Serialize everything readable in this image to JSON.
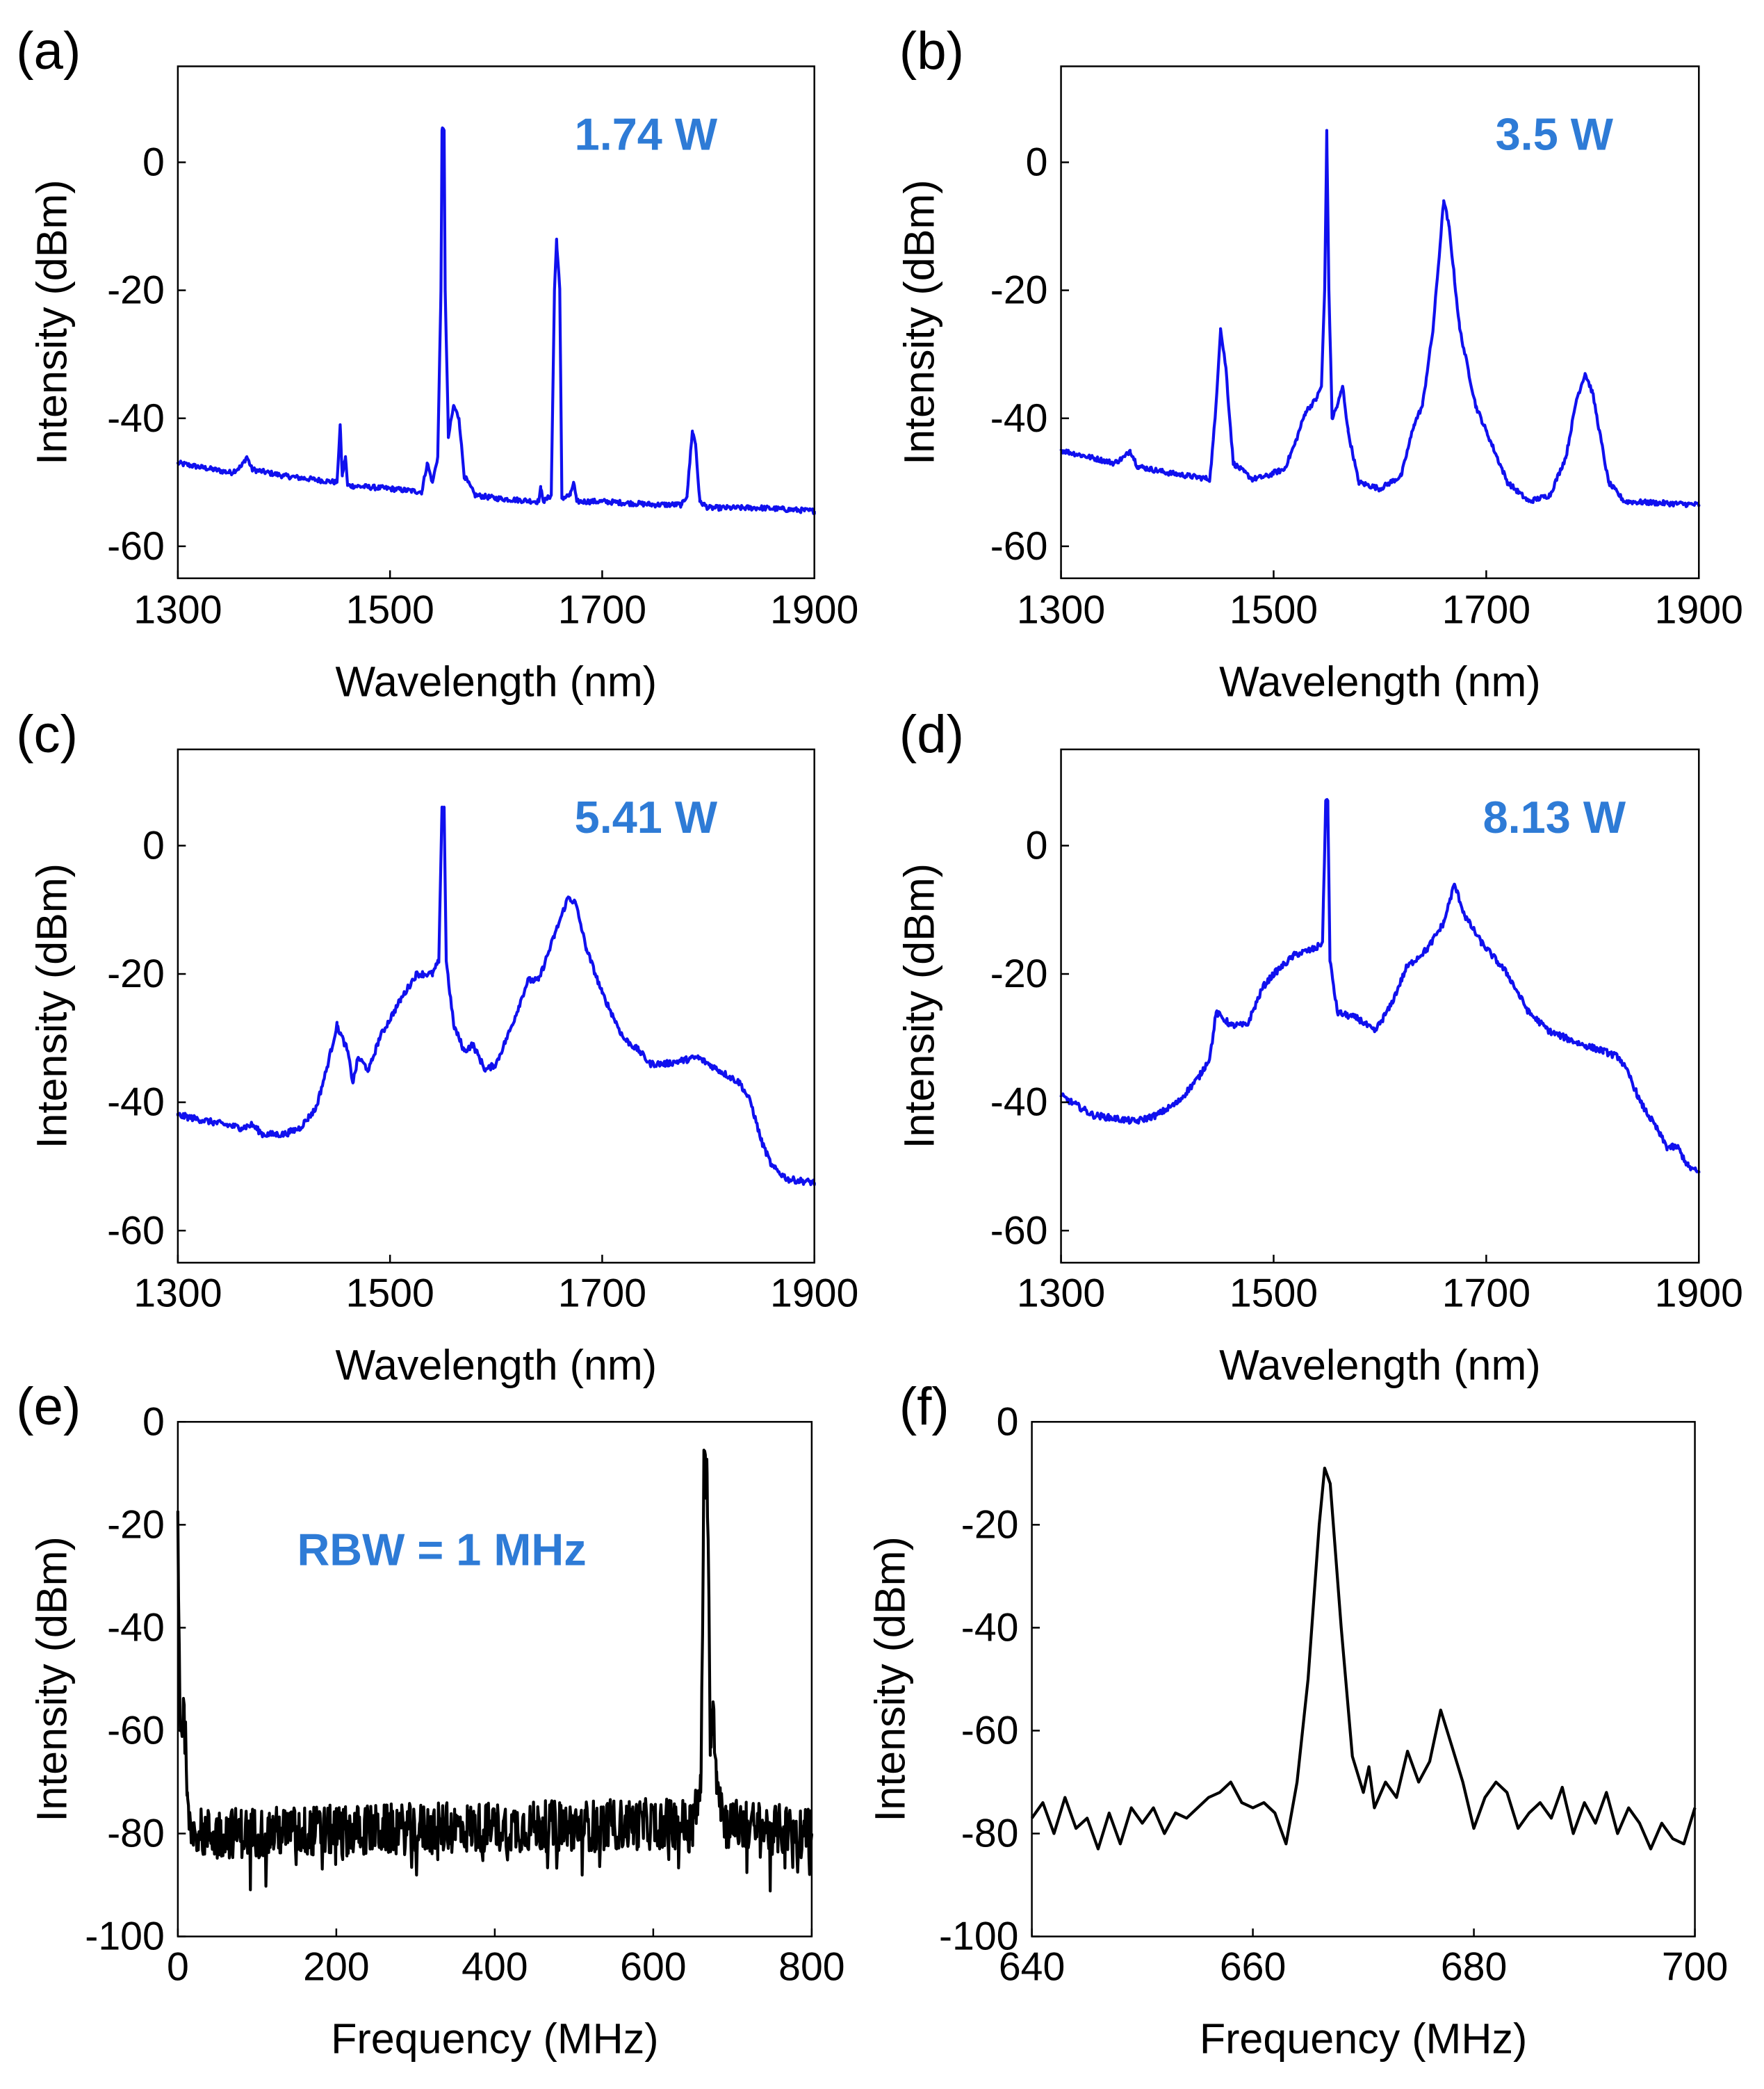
{
  "chart_data": [
    {
      "panel": "(a)",
      "type": "line",
      "annotation": "1.74 W",
      "xlabel": "Wavelength (nm)",
      "ylabel": "Intensity (dBm)",
      "xlim": [
        1300,
        1900
      ],
      "ylim": [
        -65,
        15
      ],
      "xticks": [
        1300,
        1500,
        1700,
        1900
      ],
      "yticks": [
        0,
        -20,
        -40,
        -60
      ],
      "color": "#1010ee",
      "noise_db": 0.4,
      "points": [
        [
          1300,
          -47
        ],
        [
          1350,
          -48.5
        ],
        [
          1360,
          -47.5
        ],
        [
          1365,
          -46
        ],
        [
          1370,
          -48
        ],
        [
          1400,
          -49
        ],
        [
          1450,
          -50
        ],
        [
          1453,
          -41
        ],
        [
          1455,
          -49
        ],
        [
          1458,
          -46
        ],
        [
          1460,
          -50.5
        ],
        [
          1500,
          -51
        ],
        [
          1530,
          -51.5
        ],
        [
          1535,
          -47
        ],
        [
          1540,
          -50
        ],
        [
          1545,
          -46
        ],
        [
          1548,
          -20
        ],
        [
          1549,
          5
        ],
        [
          1551,
          5
        ],
        [
          1552,
          -20
        ],
        [
          1555,
          -43
        ],
        [
          1560,
          -38
        ],
        [
          1565,
          -40
        ],
        [
          1570,
          -49
        ],
        [
          1580,
          -52
        ],
        [
          1600,
          -52.5
        ],
        [
          1640,
          -53
        ],
        [
          1642,
          -51
        ],
        [
          1645,
          -53
        ],
        [
          1652,
          -52
        ],
        [
          1655,
          -20
        ],
        [
          1657,
          -12
        ],
        [
          1660,
          -20
        ],
        [
          1662,
          -52.5
        ],
        [
          1670,
          -52
        ],
        [
          1673,
          -50
        ],
        [
          1676,
          -53
        ],
        [
          1700,
          -53
        ],
        [
          1750,
          -53.5
        ],
        [
          1775,
          -53.5
        ],
        [
          1780,
          -52
        ],
        [
          1785,
          -42
        ],
        [
          1788,
          -44
        ],
        [
          1792,
          -53
        ],
        [
          1800,
          -54
        ],
        [
          1850,
          -54
        ],
        [
          1900,
          -54.5
        ]
      ]
    },
    {
      "panel": "(b)",
      "type": "line",
      "annotation": "3.5 W",
      "xlabel": "Wavelength (nm)",
      "ylabel": "Intensity (dBm)",
      "xlim": [
        1300,
        1900
      ],
      "ylim": [
        -65,
        15
      ],
      "xticks": [
        1300,
        1500,
        1700,
        1900
      ],
      "yticks": [
        0,
        -20,
        -40,
        -60
      ],
      "color": "#1010ee",
      "noise_db": 0.4,
      "points": [
        [
          1300,
          -45
        ],
        [
          1350,
          -47
        ],
        [
          1360,
          -46
        ],
        [
          1365,
          -45
        ],
        [
          1372,
          -47.5
        ],
        [
          1400,
          -48.5
        ],
        [
          1440,
          -49.5
        ],
        [
          1445,
          -40
        ],
        [
          1450,
          -26
        ],
        [
          1455,
          -32
        ],
        [
          1462,
          -47
        ],
        [
          1480,
          -49.5
        ],
        [
          1495,
          -49
        ],
        [
          1500,
          -48.5
        ],
        [
          1510,
          -48
        ],
        [
          1520,
          -44
        ],
        [
          1530,
          -39
        ],
        [
          1540,
          -37
        ],
        [
          1545,
          -35
        ],
        [
          1548,
          -20
        ],
        [
          1550,
          5
        ],
        [
          1552,
          -20
        ],
        [
          1555,
          -40
        ],
        [
          1560,
          -38
        ],
        [
          1565,
          -35
        ],
        [
          1570,
          -42
        ],
        [
          1580,
          -50
        ],
        [
          1600,
          -51
        ],
        [
          1620,
          -49
        ],
        [
          1632,
          -41
        ],
        [
          1640,
          -38
        ],
        [
          1650,
          -26
        ],
        [
          1660,
          -6
        ],
        [
          1665,
          -10
        ],
        [
          1675,
          -26
        ],
        [
          1690,
          -38
        ],
        [
          1700,
          -42
        ],
        [
          1720,
          -50
        ],
        [
          1740,
          -53
        ],
        [
          1760,
          -52
        ],
        [
          1775,
          -46
        ],
        [
          1785,
          -37
        ],
        [
          1793,
          -33
        ],
        [
          1800,
          -36
        ],
        [
          1815,
          -50
        ],
        [
          1830,
          -53
        ],
        [
          1900,
          -53.5
        ]
      ]
    },
    {
      "panel": "(c)",
      "type": "line",
      "annotation": "5.41 W",
      "xlabel": "Wavelength (nm)",
      "ylabel": "Intensity (dBm)",
      "xlim": [
        1300,
        1900
      ],
      "ylim": [
        -65,
        15
      ],
      "xticks": [
        1300,
        1500,
        1700,
        1900
      ],
      "yticks": [
        0,
        -20,
        -40,
        -60
      ],
      "color": "#1010ee",
      "noise_db": 0.5,
      "points": [
        [
          1300,
          -42
        ],
        [
          1360,
          -44
        ],
        [
          1370,
          -43.5
        ],
        [
          1380,
          -45
        ],
        [
          1400,
          -45
        ],
        [
          1415,
          -44
        ],
        [
          1430,
          -41
        ],
        [
          1440,
          -35
        ],
        [
          1450,
          -28
        ],
        [
          1460,
          -32
        ],
        [
          1465,
          -37
        ],
        [
          1470,
          -33
        ],
        [
          1480,
          -35
        ],
        [
          1490,
          -30
        ],
        [
          1510,
          -24
        ],
        [
          1525,
          -20
        ],
        [
          1540,
          -20
        ],
        [
          1546,
          -18
        ],
        [
          1549,
          6
        ],
        [
          1551,
          6
        ],
        [
          1553,
          -18
        ],
        [
          1560,
          -28
        ],
        [
          1570,
          -32
        ],
        [
          1578,
          -31
        ],
        [
          1590,
          -35
        ],
        [
          1600,
          -34
        ],
        [
          1615,
          -28
        ],
        [
          1630,
          -21
        ],
        [
          1640,
          -21
        ],
        [
          1655,
          -14
        ],
        [
          1668,
          -8
        ],
        [
          1675,
          -9
        ],
        [
          1685,
          -16
        ],
        [
          1700,
          -23
        ],
        [
          1720,
          -30
        ],
        [
          1735,
          -32
        ],
        [
          1745,
          -34
        ],
        [
          1760,
          -34
        ],
        [
          1790,
          -33
        ],
        [
          1810,
          -35
        ],
        [
          1830,
          -37
        ],
        [
          1840,
          -40
        ],
        [
          1850,
          -46
        ],
        [
          1860,
          -50
        ],
        [
          1875,
          -52
        ],
        [
          1900,
          -52.5
        ]
      ]
    },
    {
      "panel": "(d)",
      "type": "line",
      "annotation": "8.13 W",
      "xlabel": "Wavelength (nm)",
      "ylabel": "Intensity (dBm)",
      "xlim": [
        1300,
        1900
      ],
      "ylim": [
        -65,
        15
      ],
      "xticks": [
        1300,
        1500,
        1700,
        1900
      ],
      "yticks": [
        0,
        -20,
        -40,
        -60
      ],
      "color": "#1010ee",
      "noise_db": 0.5,
      "points": [
        [
          1300,
          -39
        ],
        [
          1330,
          -42
        ],
        [
          1370,
          -43
        ],
        [
          1390,
          -42
        ],
        [
          1410,
          -40
        ],
        [
          1430,
          -36
        ],
        [
          1440,
          -33
        ],
        [
          1446,
          -26
        ],
        [
          1460,
          -28
        ],
        [
          1475,
          -28
        ],
        [
          1490,
          -22
        ],
        [
          1500,
          -20
        ],
        [
          1520,
          -17
        ],
        [
          1540,
          -16
        ],
        [
          1546,
          -15
        ],
        [
          1549,
          7
        ],
        [
          1551,
          7
        ],
        [
          1553,
          -18
        ],
        [
          1560,
          -26
        ],
        [
          1580,
          -27
        ],
        [
          1595,
          -29
        ],
        [
          1610,
          -25
        ],
        [
          1625,
          -19
        ],
        [
          1645,
          -16
        ],
        [
          1660,
          -12
        ],
        [
          1670,
          -6
        ],
        [
          1680,
          -11
        ],
        [
          1695,
          -15
        ],
        [
          1720,
          -20
        ],
        [
          1740,
          -26
        ],
        [
          1760,
          -29
        ],
        [
          1790,
          -31
        ],
        [
          1810,
          -32
        ],
        [
          1825,
          -33
        ],
        [
          1835,
          -36
        ],
        [
          1845,
          -40
        ],
        [
          1860,
          -44
        ],
        [
          1870,
          -47
        ],
        [
          1880,
          -47
        ],
        [
          1890,
          -50
        ],
        [
          1900,
          -51
        ]
      ]
    },
    {
      "panel": "(e)",
      "type": "line",
      "annotation": "RBW = 1 MHz",
      "xlabel": "Frequency (MHz)",
      "ylabel": "Intensity (dBm)",
      "xlim": [
        0,
        800
      ],
      "ylim": [
        -100,
        0
      ],
      "xticks": [
        0,
        200,
        400,
        600,
        800
      ],
      "yticks": [
        0,
        -20,
        -40,
        -60,
        -80,
        -100
      ],
      "color": "#000000",
      "noise_db": 5,
      "noise_floor_dbm": -80,
      "points": [
        [
          0,
          -18
        ],
        [
          3,
          -60
        ],
        [
          8,
          -56
        ],
        [
          12,
          -72
        ],
        [
          20,
          -80
        ],
        [
          650,
          -78
        ],
        [
          660,
          -72
        ],
        [
          664,
          -10
        ],
        [
          668,
          -10
        ],
        [
          672,
          -60
        ],
        [
          676,
          -55
        ],
        [
          680,
          -68
        ],
        [
          690,
          -78
        ],
        [
          800,
          -80
        ]
      ]
    },
    {
      "panel": "(f)",
      "type": "line",
      "annotation": "",
      "xlabel": "Frequency (MHz)",
      "ylabel": "Intensity (dBm)",
      "xlim": [
        640,
        700
      ],
      "ylim": [
        -100,
        0
      ],
      "xticks": [
        640,
        660,
        680,
        700
      ],
      "yticks": [
        0,
        -20,
        -40,
        -60,
        -80,
        -100
      ],
      "color": "#000000",
      "noise_db": 0,
      "points": [
        [
          640,
          -77
        ],
        [
          641,
          -74
        ],
        [
          642,
          -80
        ],
        [
          643,
          -73
        ],
        [
          644,
          -79
        ],
        [
          645,
          -77
        ],
        [
          646,
          -83
        ],
        [
          647,
          -76
        ],
        [
          648,
          -82
        ],
        [
          649,
          -75
        ],
        [
          650,
          -78
        ],
        [
          651,
          -75
        ],
        [
          652,
          -80
        ],
        [
          653,
          -76
        ],
        [
          654,
          -77
        ],
        [
          655,
          -75
        ],
        [
          656,
          -73
        ],
        [
          657,
          -72
        ],
        [
          658,
          -70
        ],
        [
          659,
          -74
        ],
        [
          660,
          -75
        ],
        [
          661,
          -74
        ],
        [
          662,
          -76
        ],
        [
          663,
          -82
        ],
        [
          664,
          -70
        ],
        [
          665,
          -50
        ],
        [
          666,
          -20
        ],
        [
          666.5,
          -9
        ],
        [
          667,
          -12
        ],
        [
          668,
          -40
        ],
        [
          669,
          -65
        ],
        [
          670,
          -72
        ],
        [
          670.5,
          -67
        ],
        [
          671,
          -75
        ],
        [
          672,
          -70
        ],
        [
          673,
          -73
        ],
        [
          674,
          -64
        ],
        [
          675,
          -70
        ],
        [
          676,
          -66
        ],
        [
          677,
          -56
        ],
        [
          678,
          -63
        ],
        [
          679,
          -70
        ],
        [
          680,
          -79
        ],
        [
          681,
          -73
        ],
        [
          682,
          -70
        ],
        [
          683,
          -72
        ],
        [
          684,
          -79
        ],
        [
          685,
          -76
        ],
        [
          686,
          -74
        ],
        [
          687,
          -77
        ],
        [
          688,
          -71
        ],
        [
          689,
          -80
        ],
        [
          690,
          -74
        ],
        [
          691,
          -78
        ],
        [
          692,
          -72
        ],
        [
          693,
          -80
        ],
        [
          694,
          -75
        ],
        [
          695,
          -78
        ],
        [
          696,
          -83
        ],
        [
          697,
          -78
        ],
        [
          698,
          -81
        ],
        [
          699,
          -82
        ],
        [
          700,
          -75
        ]
      ]
    }
  ]
}
